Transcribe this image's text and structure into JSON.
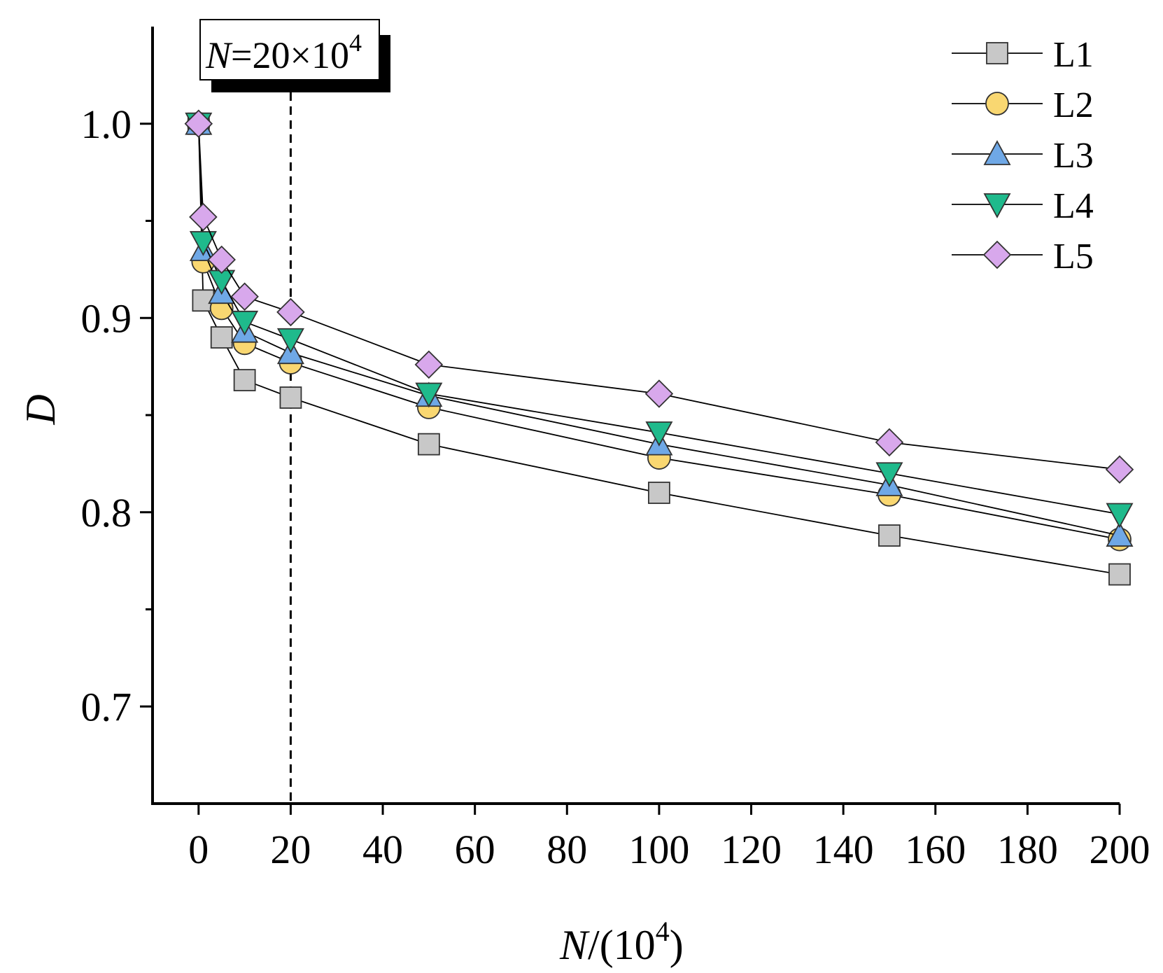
{
  "chart_data": {
    "type": "line",
    "title": "",
    "xlabel": {
      "var": "N",
      "text": "/(10",
      "sup": "4",
      "close": ")"
    },
    "ylabel": "D",
    "xlim": [
      -10,
      200
    ],
    "ylim": [
      0.65,
      1.05
    ],
    "x_ticks": [
      0,
      20,
      40,
      60,
      80,
      100,
      120,
      140,
      160,
      180,
      200
    ],
    "y_ticks": [
      0.7,
      0.8,
      0.9,
      1.0
    ],
    "y_tick_labels": [
      "0.7",
      "0.8",
      "0.9",
      "1.0"
    ],
    "y_minor_ticks": [
      0.75,
      0.85,
      0.95
    ],
    "reference_line": {
      "x": 20,
      "style": "dashed"
    },
    "annotation": {
      "var": "N",
      "text": "=20×10",
      "sup": "4"
    },
    "legend_position": "top-right",
    "x": [
      0,
      1,
      5,
      10,
      20,
      50,
      100,
      150,
      200
    ],
    "series": [
      {
        "name": "L1",
        "marker": "square",
        "color": "#c8c8c8",
        "values": [
          1.0,
          0.909,
          0.89,
          0.868,
          0.859,
          0.835,
          0.81,
          0.788,
          0.768
        ]
      },
      {
        "name": "L2",
        "marker": "circle",
        "color": "#f9d771",
        "values": [
          1.0,
          0.929,
          0.905,
          0.887,
          0.877,
          0.854,
          0.828,
          0.809,
          0.786
        ]
      },
      {
        "name": "L3",
        "marker": "triangle-up",
        "color": "#6fa8e6",
        "values": [
          1.0,
          0.935,
          0.913,
          0.893,
          0.882,
          0.86,
          0.835,
          0.814,
          0.788
        ]
      },
      {
        "name": "L4",
        "marker": "triangle-down",
        "color": "#1fba8c",
        "values": [
          1.0,
          0.939,
          0.919,
          0.898,
          0.889,
          0.861,
          0.841,
          0.82,
          0.799
        ]
      },
      {
        "name": "L5",
        "marker": "diamond",
        "color": "#d8a8ec",
        "values": [
          1.0,
          0.952,
          0.93,
          0.911,
          0.903,
          0.876,
          0.861,
          0.836,
          0.822
        ]
      }
    ]
  }
}
